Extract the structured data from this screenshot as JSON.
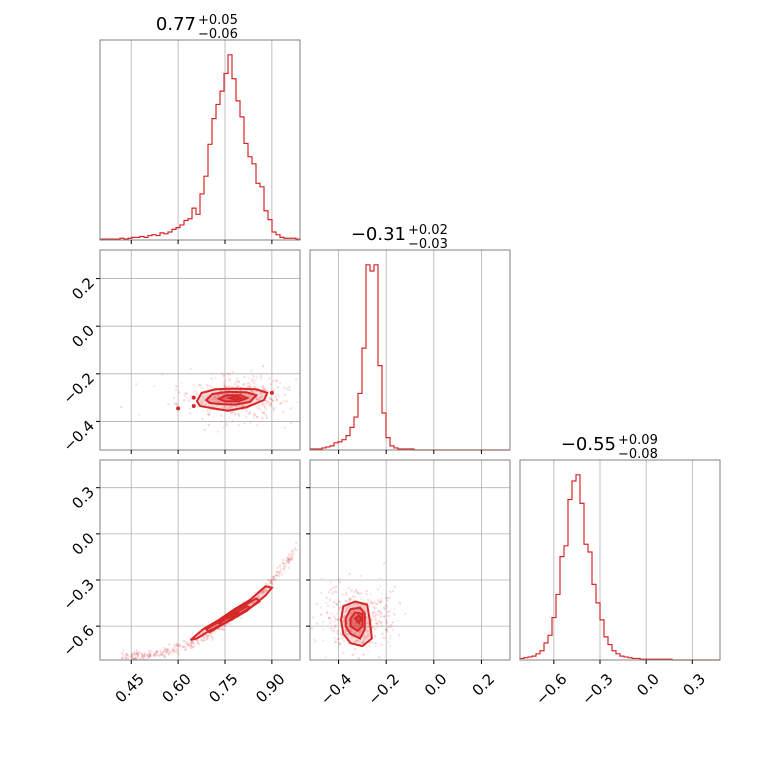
{
  "chart_data": {
    "type": "corner",
    "color": "#d62728",
    "grid": true,
    "parameters": [
      {
        "index": 0,
        "range": [
          0.35,
          0.99
        ],
        "title": {
          "median": "0.77",
          "plus": "+0.05",
          "minus": "−0.06"
        },
        "ticks": [
          0.45,
          0.6,
          0.75,
          0.9
        ],
        "tick_labels": [
          "0.45",
          "0.60",
          "0.75",
          "0.90"
        ]
      },
      {
        "index": 1,
        "range": [
          -0.52,
          0.32
        ],
        "title": {
          "median": "−0.31",
          "plus": "+0.02",
          "minus": "−0.03"
        },
        "ticks": [
          -0.4,
          -0.2,
          0.0,
          0.2
        ],
        "tick_labels": [
          "−0.4",
          "−0.2",
          "0.0",
          "0.2"
        ]
      },
      {
        "index": 2,
        "range": [
          -0.82,
          0.48
        ],
        "title": {
          "median": "−0.55",
          "plus": "+0.09",
          "minus": "−0.08"
        },
        "ticks": [
          -0.6,
          -0.3,
          0.0,
          0.3
        ],
        "tick_labels": [
          "−0.6",
          "−0.3",
          "0.0",
          "0.3"
        ]
      }
    ],
    "histograms": [
      {
        "param": 0,
        "bin_edges": [
          0.35,
          0.3628,
          0.3756,
          0.3884,
          0.4012,
          0.414,
          0.4268,
          0.4396,
          0.4524,
          0.4652,
          0.478,
          0.4908,
          0.5036,
          0.5164,
          0.5292,
          0.542,
          0.5548,
          0.5676,
          0.5804,
          0.5932,
          0.606,
          0.6188,
          0.6316,
          0.6444,
          0.6572,
          0.67,
          0.6828,
          0.6956,
          0.7084,
          0.7212,
          0.734,
          0.7468,
          0.7596,
          0.7724,
          0.7852,
          0.798,
          0.8108,
          0.8236,
          0.8364,
          0.8492,
          0.862,
          0.8748,
          0.8876,
          0.9004,
          0.9132,
          0.926,
          0.9388,
          0.9516,
          0.9644,
          0.9772,
          0.99
        ],
        "counts": [
          1,
          1,
          1,
          1,
          1,
          2,
          1,
          2,
          3,
          3,
          4,
          3,
          5,
          6,
          5,
          8,
          7,
          9,
          12,
          14,
          17,
          22,
          24,
          36,
          29,
          52,
          72,
          108,
          137,
          153,
          168,
          188,
          209,
          182,
          157,
          139,
          109,
          94,
          86,
          64,
          60,
          33,
          23,
          9,
          6,
          3,
          2,
          2,
          2,
          1
        ]
      },
      {
        "param": 1,
        "bin_edges": [
          -0.52,
          -0.5032,
          -0.4864,
          -0.4696,
          -0.4528,
          -0.436,
          -0.4192,
          -0.4024,
          -0.3856,
          -0.3688,
          -0.352,
          -0.3352,
          -0.3184,
          -0.3016,
          -0.2848,
          -0.268,
          -0.2512,
          -0.2344,
          -0.2176,
          -0.2008,
          -0.184,
          -0.1672,
          -0.1504,
          -0.1336,
          -0.1168,
          -0.1,
          -0.0832,
          -0.0664,
          -0.0496,
          -0.0328,
          -0.016,
          0.0008,
          0.0176,
          0.0344,
          0.0512,
          0.068,
          0.0848,
          0.1016,
          0.1184,
          0.1352,
          0.152,
          0.1688,
          0.1856,
          0.2024,
          0.2192,
          0.236,
          0.2528,
          0.2696,
          0.2864,
          0.3032,
          0.32
        ],
        "counts": [
          1,
          1,
          1,
          2,
          3,
          4,
          7,
          8,
          10,
          14,
          22,
          32,
          55,
          99,
          180,
          174,
          180,
          82,
          36,
          12,
          4,
          2,
          1,
          1,
          1,
          1,
          0,
          0,
          0,
          0,
          0,
          0,
          0,
          0,
          0,
          0,
          0,
          0,
          0,
          0,
          0,
          0,
          0,
          0,
          0,
          0,
          0,
          0,
          0,
          0
        ]
      },
      {
        "param": 2,
        "bin_edges": [
          -0.82,
          -0.794,
          -0.768,
          -0.742,
          -0.716,
          -0.69,
          -0.664,
          -0.638,
          -0.612,
          -0.586,
          -0.56,
          -0.534,
          -0.508,
          -0.482,
          -0.456,
          -0.43,
          -0.404,
          -0.378,
          -0.352,
          -0.326,
          -0.3,
          -0.274,
          -0.248,
          -0.222,
          -0.196,
          -0.17,
          -0.144,
          -0.118,
          -0.092,
          -0.066,
          -0.04,
          -0.014,
          0.012,
          0.038,
          0.064,
          0.09,
          0.116,
          0.142,
          0.168,
          0.194,
          0.22,
          0.246,
          0.272,
          0.298,
          0.324,
          0.35,
          0.376,
          0.402,
          0.428,
          0.454,
          0.48
        ],
        "counts": [
          2,
          3,
          4,
          5,
          8,
          12,
          22,
          32,
          55,
          85,
          134,
          148,
          208,
          232,
          240,
          203,
          150,
          140,
          98,
          74,
          52,
          30,
          20,
          12,
          8,
          5,
          4,
          3,
          2,
          2,
          1,
          1,
          1,
          1,
          1,
          1,
          1,
          1,
          0,
          0,
          0,
          0,
          0,
          0,
          0,
          0,
          0,
          0,
          0,
          0
        ]
      }
    ],
    "pairs": [
      {
        "x_param": 0,
        "y_param": 1,
        "center": [
          0.78,
          -0.3
        ],
        "contours": [
          [
            [
              0.66,
              -0.315
            ],
            [
              0.675,
              -0.28
            ],
            [
              0.72,
              -0.265
            ],
            [
              0.78,
              -0.262
            ],
            [
              0.85,
              -0.265
            ],
            [
              0.885,
              -0.28
            ],
            [
              0.875,
              -0.31
            ],
            [
              0.82,
              -0.34
            ],
            [
              0.76,
              -0.355
            ],
            [
              0.71,
              -0.345
            ],
            [
              0.67,
              -0.335
            ]
          ],
          [
            [
              0.69,
              -0.31
            ],
            [
              0.71,
              -0.285
            ],
            [
              0.76,
              -0.275
            ],
            [
              0.82,
              -0.278
            ],
            [
              0.85,
              -0.29
            ],
            [
              0.83,
              -0.318
            ],
            [
              0.78,
              -0.33
            ],
            [
              0.73,
              -0.327
            ],
            [
              0.7,
              -0.322
            ]
          ],
          [
            [
              0.73,
              -0.305
            ],
            [
              0.755,
              -0.29
            ],
            [
              0.8,
              -0.29
            ],
            [
              0.82,
              -0.302
            ],
            [
              0.795,
              -0.315
            ],
            [
              0.75,
              -0.316
            ]
          ],
          [
            [
              0.765,
              -0.302
            ],
            [
              0.785,
              -0.295
            ],
            [
              0.8,
              -0.302
            ],
            [
              0.785,
              -0.309
            ]
          ]
        ],
        "extra_points": [
          [
            0.6,
            -0.345
          ],
          [
            0.65,
            -0.3
          ],
          [
            0.65,
            -0.335
          ],
          [
            0.9,
            -0.28
          ]
        ],
        "scatter_box": [
          0.45,
          -0.45,
          0.98,
          -0.17
        ]
      },
      {
        "x_param": 0,
        "y_param": 2,
        "center": [
          0.78,
          -0.55
        ],
        "contours": [
          [
            [
              0.66,
              -0.68
            ],
            [
              0.7,
              -0.63
            ],
            [
              0.76,
              -0.57
            ],
            [
              0.82,
              -0.5
            ],
            [
              0.88,
              -0.4
            ],
            [
              0.9,
              -0.35
            ],
            [
              0.88,
              -0.34
            ],
            [
              0.83,
              -0.43
            ],
            [
              0.78,
              -0.49
            ],
            [
              0.73,
              -0.56
            ],
            [
              0.68,
              -0.62
            ],
            [
              0.64,
              -0.69
            ]
          ],
          [
            [
              0.7,
              -0.64
            ],
            [
              0.75,
              -0.58
            ],
            [
              0.81,
              -0.51
            ],
            [
              0.86,
              -0.44
            ],
            [
              0.85,
              -0.42
            ],
            [
              0.79,
              -0.49
            ],
            [
              0.74,
              -0.56
            ],
            [
              0.69,
              -0.62
            ]
          ],
          [
            [
              0.74,
              -0.59
            ],
            [
              0.79,
              -0.53
            ],
            [
              0.83,
              -0.48
            ],
            [
              0.82,
              -0.47
            ],
            [
              0.77,
              -0.53
            ],
            [
              0.73,
              -0.58
            ]
          ],
          [
            [
              0.77,
              -0.56
            ],
            [
              0.8,
              -0.52
            ],
            [
              0.79,
              -0.515
            ],
            [
              0.765,
              -0.555
            ]
          ]
        ],
        "extra_points": [],
        "scatter_box": [
          0.42,
          -0.8,
          0.98,
          -0.1
        ]
      },
      {
        "x_param": 1,
        "y_param": 2,
        "center": [
          -0.31,
          -0.55
        ],
        "contours": [
          [
            [
              -0.39,
              -0.56
            ],
            [
              -0.38,
              -0.47
            ],
            [
              -0.33,
              -0.44
            ],
            [
              -0.28,
              -0.46
            ],
            [
              -0.27,
              -0.55
            ],
            [
              -0.26,
              -0.68
            ],
            [
              -0.3,
              -0.73
            ],
            [
              -0.35,
              -0.71
            ],
            [
              -0.38,
              -0.65
            ]
          ],
          [
            [
              -0.37,
              -0.55
            ],
            [
              -0.35,
              -0.49
            ],
            [
              -0.31,
              -0.48
            ],
            [
              -0.29,
              -0.52
            ],
            [
              -0.29,
              -0.62
            ],
            [
              -0.31,
              -0.68
            ],
            [
              -0.35,
              -0.65
            ],
            [
              -0.37,
              -0.6
            ]
          ],
          [
            [
              -0.35,
              -0.55
            ],
            [
              -0.33,
              -0.51
            ],
            [
              -0.3,
              -0.52
            ],
            [
              -0.3,
              -0.6
            ],
            [
              -0.32,
              -0.63
            ],
            [
              -0.35,
              -0.6
            ]
          ],
          [
            [
              -0.33,
              -0.55
            ],
            [
              -0.315,
              -0.53
            ],
            [
              -0.305,
              -0.55
            ],
            [
              -0.315,
              -0.58
            ]
          ]
        ],
        "extra_points": [],
        "scatter_box": [
          -0.5,
          -0.82,
          -0.05,
          -0.2
        ]
      }
    ]
  }
}
